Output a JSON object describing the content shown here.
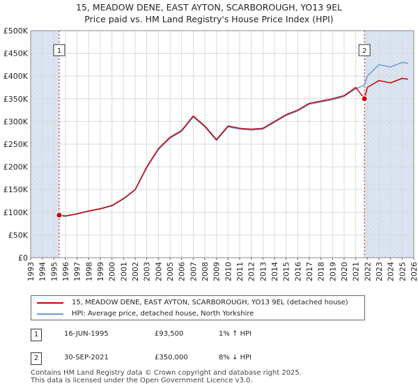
{
  "title_line1": "15, MEADOW DENE, EAST AYTON, SCARBOROUGH, YO13 9EL",
  "title_line2": "Price paid vs. HM Land Registry's House Price Index (HPI)",
  "colors": {
    "price_line": "#cc0000",
    "hpi_line": "#6b9bd1",
    "shade": "#dde6f2",
    "grid": "#d9d9d9",
    "marker": "#cc0000"
  },
  "chart_data": {
    "type": "line",
    "title": "Price paid vs. HM Land Registry's House Price Index (HPI)",
    "xlabel": "",
    "ylabel": "",
    "xlim": [
      1993,
      2026
    ],
    "ylim": [
      0,
      500000
    ],
    "x_ticks": [
      "1993",
      "1994",
      "1995",
      "1996",
      "1997",
      "1998",
      "1999",
      "2000",
      "2001",
      "2002",
      "2003",
      "2004",
      "2005",
      "2006",
      "2007",
      "2008",
      "2009",
      "2010",
      "2011",
      "2012",
      "2013",
      "2014",
      "2015",
      "2016",
      "2017",
      "2018",
      "2019",
      "2020",
      "2021",
      "2022",
      "2023",
      "2024",
      "2025",
      "2026"
    ],
    "y_ticks": [
      {
        "value": 0,
        "label": "£0"
      },
      {
        "value": 50000,
        "label": "£50K"
      },
      {
        "value": 100000,
        "label": "£100K"
      },
      {
        "value": 150000,
        "label": "£150K"
      },
      {
        "value": 200000,
        "label": "£200K"
      },
      {
        "value": 250000,
        "label": "£250K"
      },
      {
        "value": 300000,
        "label": "£300K"
      },
      {
        "value": 350000,
        "label": "£350K"
      },
      {
        "value": 400000,
        "label": "£400K"
      },
      {
        "value": 450000,
        "label": "£450K"
      },
      {
        "value": 500000,
        "label": "£500K"
      }
    ],
    "shaded_ranges": [
      [
        1993,
        1995.46
      ],
      [
        2021.75,
        2026
      ]
    ],
    "series": [
      {
        "name": "15, MEADOW DENE, EAST AYTON, SCARBOROUGH, YO13 9EL (detached house)",
        "color": "#cc0000",
        "points": [
          [
            1995.46,
            93500
          ],
          [
            1996,
            92000
          ],
          [
            1997,
            97000
          ],
          [
            1998,
            103000
          ],
          [
            1999,
            108000
          ],
          [
            2000,
            115000
          ],
          [
            2001,
            130000
          ],
          [
            2002,
            150000
          ],
          [
            2003,
            200000
          ],
          [
            2004,
            240000
          ],
          [
            2005,
            265000
          ],
          [
            2006,
            280000
          ],
          [
            2007,
            312000
          ],
          [
            2008,
            290000
          ],
          [
            2009,
            260000
          ],
          [
            2010,
            290000
          ],
          [
            2011,
            285000
          ],
          [
            2012,
            283000
          ],
          [
            2013,
            285000
          ],
          [
            2014,
            300000
          ],
          [
            2015,
            315000
          ],
          [
            2016,
            325000
          ],
          [
            2017,
            340000
          ],
          [
            2018,
            345000
          ],
          [
            2019,
            350000
          ],
          [
            2020,
            357000
          ],
          [
            2021,
            375000
          ],
          [
            2021.75,
            350000
          ],
          [
            2022,
            375000
          ],
          [
            2023,
            390000
          ],
          [
            2024,
            385000
          ],
          [
            2025,
            395000
          ],
          [
            2025.5,
            393000
          ]
        ]
      },
      {
        "name": "HPI: Average price, detached house, North Yorkshire",
        "color": "#6b9bd1",
        "points": [
          [
            1995.46,
            92600
          ],
          [
            1996,
            91000
          ],
          [
            1997,
            96000
          ],
          [
            1998,
            102000
          ],
          [
            1999,
            107000
          ],
          [
            2000,
            114000
          ],
          [
            2001,
            129000
          ],
          [
            2002,
            149000
          ],
          [
            2003,
            198000
          ],
          [
            2004,
            238000
          ],
          [
            2005,
            263000
          ],
          [
            2006,
            278000
          ],
          [
            2007,
            310000
          ],
          [
            2008,
            288000
          ],
          [
            2009,
            258000
          ],
          [
            2010,
            288000
          ],
          [
            2011,
            283000
          ],
          [
            2012,
            281000
          ],
          [
            2013,
            283000
          ],
          [
            2014,
            298000
          ],
          [
            2015,
            313000
          ],
          [
            2016,
            323000
          ],
          [
            2017,
            338000
          ],
          [
            2018,
            343000
          ],
          [
            2019,
            348000
          ],
          [
            2020,
            355000
          ],
          [
            2021,
            372000
          ],
          [
            2021.75,
            380000
          ],
          [
            2022,
            400000
          ],
          [
            2023,
            425000
          ],
          [
            2024,
            420000
          ],
          [
            2025,
            430000
          ],
          [
            2025.5,
            428000
          ]
        ]
      }
    ],
    "annotations": [
      {
        "label": "1",
        "x": 1995.46,
        "y": 93500
      },
      {
        "label": "2",
        "x": 2021.75,
        "y": 350000
      }
    ]
  },
  "legend": {
    "price": "15, MEADOW DENE, EAST AYTON, SCARBOROUGH, YO13 9EL (detached house)",
    "hpi": "HPI: Average price, detached house, North Yorkshire"
  },
  "sales": [
    {
      "num": "1",
      "date": "16-JUN-1995",
      "price": "£93,500",
      "hpi": "1% ↑ HPI"
    },
    {
      "num": "2",
      "date": "30-SEP-2021",
      "price": "£350,000",
      "hpi": "8% ↓ HPI"
    }
  ],
  "footer_line1": "Contains HM Land Registry data © Crown copyright and database right 2025.",
  "footer_line2": "This data is licensed under the Open Government Licence v3.0."
}
